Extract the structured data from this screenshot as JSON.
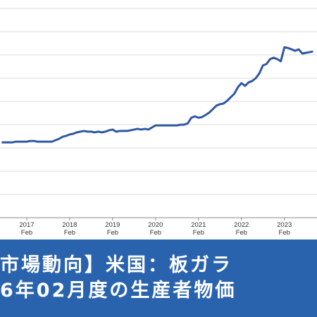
{
  "chart_data": {
    "type": "line",
    "categories": [
      null,
      null,
      null,
      null,
      null,
      null,
      null,
      "2017\nFeb",
      null,
      null,
      null,
      null,
      null,
      null,
      null,
      null,
      null,
      null,
      null,
      "2018\nFeb",
      null,
      null,
      null,
      null,
      null,
      null,
      null,
      null,
      null,
      null,
      null,
      "2019\nFeb",
      null,
      null,
      null,
      null,
      null,
      null,
      null,
      null,
      null,
      null,
      null,
      "2020\nFeb",
      null,
      null,
      null,
      null,
      null,
      null,
      null,
      null,
      null,
      null,
      null,
      "2021\nFeb",
      null,
      null,
      null,
      null,
      null,
      null,
      null,
      null,
      null,
      null,
      null,
      "2022\nFeb",
      null,
      null,
      null,
      null,
      null,
      null,
      null,
      null,
      null,
      null,
      null,
      "2023\nFeb",
      null,
      null,
      null,
      null,
      null,
      null,
      null,
      null
    ],
    "series": [
      {
        "color": "#2f58a3",
        "values": [
          3.24,
          3.24,
          3.24,
          3.24,
          3.27,
          3.27,
          3.27,
          3.27,
          3.3,
          3.3,
          3.27,
          3.27,
          3.27,
          3.27,
          3.27,
          3.33,
          3.39,
          3.48,
          3.52,
          3.58,
          3.61,
          3.67,
          3.7,
          3.73,
          3.7,
          3.7,
          3.67,
          3.7,
          3.67,
          3.7,
          3.76,
          3.79,
          3.7,
          3.73,
          3.73,
          3.73,
          3.76,
          3.79,
          3.82,
          3.79,
          3.82,
          3.79,
          3.88,
          3.97,
          3.97,
          3.97,
          3.97,
          3.97,
          3.97,
          3.97,
          4.0,
          4.0,
          4.06,
          4.3,
          4.36,
          4.3,
          4.33,
          4.42,
          4.52,
          4.67,
          4.82,
          4.88,
          4.91,
          5.03,
          5.18,
          5.33,
          5.61,
          5.79,
          5.67,
          5.82,
          5.88,
          6.0,
          6.21,
          6.55,
          6.61,
          6.82,
          6.88,
          6.82,
          6.73,
          7.33,
          7.3,
          7.24,
          7.18,
          7.24,
          7.06,
          7.09,
          7.12,
          7.15
        ]
      }
    ],
    "ylim": [
      0,
      9
    ],
    "yticks": [
      0,
      1,
      2,
      3,
      4,
      5,
      6,
      7,
      8,
      9
    ],
    "grid": true
  },
  "banner": {
    "lines": [
      "市場動向】米国：板ガラ",
      "6年02月度の生産者物価"
    ]
  }
}
